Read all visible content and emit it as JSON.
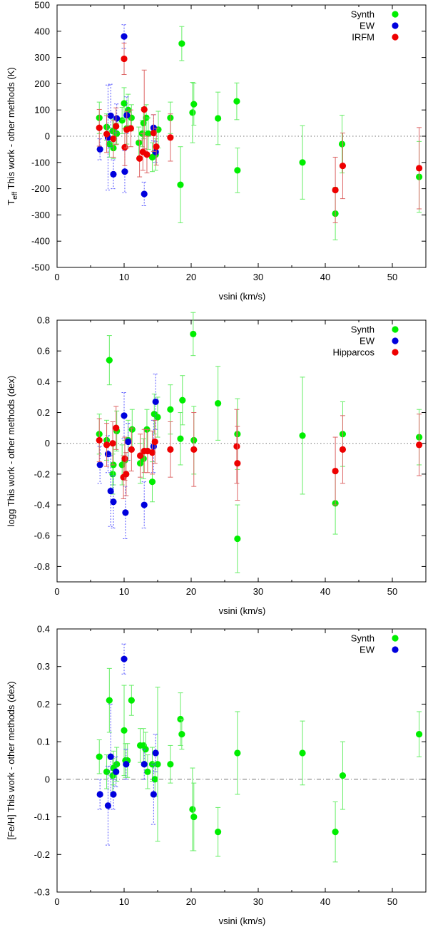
{
  "chart_data": [
    {
      "type": "scatter",
      "xlabel": "vsini (km/s)",
      "ylabel": "T_eff This work - other methods (K)",
      "ylabel_parts": {
        "pre": "T",
        "sub": "eff",
        "post": " This work - other methods (K)"
      },
      "xlim": [
        0,
        55
      ],
      "ylim": [
        -500,
        500
      ],
      "xticks": [
        0,
        10,
        20,
        30,
        40,
        50
      ],
      "yticks": [
        -500,
        -400,
        -300,
        -200,
        -100,
        0,
        100,
        200,
        300,
        400,
        500
      ],
      "zero_line": "dotted",
      "legend_position": "top-right",
      "series": [
        {
          "name": "Synth",
          "color": "#00ee00",
          "err_color": "#66ee66",
          "points": [
            [
              6.3,
              70,
              60
            ],
            [
              7.4,
              35,
              50
            ],
            [
              7.8,
              -30,
              50
            ],
            [
              8.3,
              20,
              45
            ],
            [
              8.4,
              -45,
              40
            ],
            [
              8.9,
              10,
              40
            ],
            [
              9.7,
              60,
              50
            ],
            [
              10.0,
              125,
              60
            ],
            [
              10.4,
              30,
              60
            ],
            [
              10.6,
              100,
              60
            ],
            [
              11.1,
              70,
              50
            ],
            [
              12.2,
              -25,
              60
            ],
            [
              12.7,
              10,
              50
            ],
            [
              12.9,
              50,
              60
            ],
            [
              13.3,
              70,
              50
            ],
            [
              13.6,
              10,
              60
            ],
            [
              14.2,
              -80,
              55
            ],
            [
              14.7,
              -70,
              60
            ],
            [
              15.1,
              25,
              70
            ],
            [
              16.9,
              70,
              60
            ],
            [
              18.4,
              -185,
              145
            ],
            [
              18.6,
              353,
              65
            ],
            [
              20.2,
              90,
              115
            ],
            [
              20.4,
              122,
              80
            ],
            [
              24.0,
              68,
              100
            ],
            [
              26.8,
              133,
              70
            ],
            [
              26.9,
              -130,
              85
            ],
            [
              36.6,
              -100,
              140
            ],
            [
              41.5,
              -295,
              100
            ],
            [
              42.5,
              -30,
              110
            ],
            [
              54.0,
              -155,
              135
            ]
          ]
        },
        {
          "name": "EW",
          "color": "#0000dd",
          "err_color": "#5555ff",
          "points": [
            [
              6.4,
              -50,
              40
            ],
            [
              7.6,
              -5,
              200
            ],
            [
              8.0,
              78,
              120
            ],
            [
              8.4,
              -145,
              55
            ],
            [
              8.9,
              68,
              55
            ],
            [
              10.0,
              380,
              45
            ],
            [
              10.1,
              -135,
              80
            ],
            [
              10.4,
              80,
              70
            ],
            [
              13.0,
              -220,
              45
            ],
            [
              14.4,
              32,
              50
            ],
            [
              14.7,
              -60,
              40
            ]
          ]
        },
        {
          "name": "IRFM",
          "color": "#ee0000",
          "err_color": "#dd6666",
          "points": [
            [
              6.3,
              32,
              70
            ],
            [
              7.4,
              8,
              70
            ],
            [
              8.4,
              -10,
              70
            ],
            [
              8.8,
              38,
              70
            ],
            [
              10.0,
              295,
              60
            ],
            [
              10.1,
              -42,
              70
            ],
            [
              10.4,
              25,
              70
            ],
            [
              11.0,
              30,
              70
            ],
            [
              12.3,
              -85,
              70
            ],
            [
              12.8,
              -60,
              70
            ],
            [
              13.0,
              102,
              150
            ],
            [
              13.4,
              -70,
              70
            ],
            [
              14.4,
              12,
              70
            ],
            [
              14.8,
              -40,
              70
            ],
            [
              16.9,
              -5,
              90
            ],
            [
              41.5,
              -205,
              125
            ],
            [
              42.6,
              -113,
              125
            ],
            [
              54.0,
              -122,
              155
            ]
          ]
        }
      ]
    },
    {
      "type": "scatter",
      "xlabel": "vsini (km/s)",
      "ylabel": "logg This work - other methods (dex)",
      "xlim": [
        0,
        55
      ],
      "ylim": [
        -0.9,
        0.8
      ],
      "xticks": [
        0,
        10,
        20,
        30,
        40,
        50
      ],
      "yticks": [
        -0.8,
        -0.6,
        -0.4,
        -0.2,
        0,
        0.2,
        0.4,
        0.6,
        0.8
      ],
      "ytick_labels": [
        "-0.8",
        "-0.6",
        "-0.4",
        "-0.2",
        "0",
        "0.2",
        "0.4",
        "0.6",
        "0.8"
      ],
      "zero_line": "dotted",
      "legend_position": "top-right",
      "series": [
        {
          "name": "Synth",
          "color": "#00ee00",
          "err_color": "#66ee66",
          "points": [
            [
              6.3,
              0.06,
              0.13
            ],
            [
              7.4,
              0.02,
              0.13
            ],
            [
              7.8,
              0.54,
              0.16
            ],
            [
              8.3,
              -0.2,
              0.13
            ],
            [
              8.4,
              -0.14,
              0.13
            ],
            [
              8.9,
              0.08,
              0.13
            ],
            [
              9.7,
              -0.14,
              0.13
            ],
            [
              10.1,
              -0.11,
              0.13
            ],
            [
              10.6,
              0.02,
              0.13
            ],
            [
              11.2,
              0.09,
              0.13
            ],
            [
              12.4,
              -0.13,
              0.13
            ],
            [
              12.9,
              -0.1,
              0.13
            ],
            [
              13.4,
              0.09,
              0.13
            ],
            [
              14.2,
              -0.25,
              0.13
            ],
            [
              14.5,
              0.19,
              0.13
            ],
            [
              15.0,
              0.17,
              0.13
            ],
            [
              16.9,
              0.22,
              0.16
            ],
            [
              18.4,
              0.03,
              0.17
            ],
            [
              18.7,
              0.28,
              0.16
            ],
            [
              20.3,
              0.71,
              0.14
            ],
            [
              20.4,
              0.02,
              0.22
            ],
            [
              24.0,
              0.26,
              0.24
            ],
            [
              26.9,
              0.06,
              0.23
            ],
            [
              26.9,
              -0.62,
              0.22
            ],
            [
              36.6,
              0.05,
              0.38
            ],
            [
              41.5,
              -0.39,
              0.2
            ],
            [
              42.6,
              0.06,
              0.21
            ],
            [
              54.0,
              0.04,
              0.18
            ]
          ]
        },
        {
          "name": "EW",
          "color": "#0000dd",
          "err_color": "#5555ff",
          "points": [
            [
              6.4,
              -0.14,
              0.12
            ],
            [
              7.6,
              -0.07,
              0.12
            ],
            [
              8.0,
              -0.31,
              0.23
            ],
            [
              8.4,
              -0.38,
              0.17
            ],
            [
              10.0,
              0.18,
              0.15
            ],
            [
              10.2,
              -0.45,
              0.17
            ],
            [
              10.6,
              0.01,
              0.12
            ],
            [
              13.0,
              -0.4,
              0.15
            ],
            [
              14.4,
              -0.02,
              0.17
            ],
            [
              14.7,
              0.27,
              0.18
            ]
          ]
        },
        {
          "name": "Hipparcos",
          "color": "#ee0000",
          "err_color": "#dd6666",
          "points": [
            [
              6.3,
              0.02,
              0.14
            ],
            [
              7.4,
              -0.01,
              0.14
            ],
            [
              8.3,
              0.0,
              0.14
            ],
            [
              8.8,
              0.1,
              0.14
            ],
            [
              9.9,
              -0.22,
              0.14
            ],
            [
              10.1,
              -0.1,
              0.14
            ],
            [
              10.3,
              -0.2,
              0.14
            ],
            [
              11.1,
              -0.04,
              0.14
            ],
            [
              12.4,
              -0.08,
              0.14
            ],
            [
              13.0,
              -0.05,
              0.14
            ],
            [
              13.5,
              -0.05,
              0.14
            ],
            [
              14.2,
              -0.06,
              0.14
            ],
            [
              14.6,
              0.01,
              0.14
            ],
            [
              16.9,
              -0.04,
              0.18
            ],
            [
              20.4,
              -0.04,
              0.24
            ],
            [
              26.8,
              -0.02,
              0.24
            ],
            [
              26.9,
              -0.13,
              0.24
            ],
            [
              41.5,
              -0.18,
              0.22
            ],
            [
              42.6,
              -0.04,
              0.22
            ],
            [
              54.0,
              -0.01,
              0.2
            ]
          ]
        }
      ]
    },
    {
      "type": "scatter",
      "xlabel": "vsini (km/s)",
      "ylabel": "[Fe/H] This work - other methods (dex)",
      "xlim": [
        0,
        55
      ],
      "ylim": [
        -0.3,
        0.4
      ],
      "xticks": [
        0,
        10,
        20,
        30,
        40,
        50
      ],
      "yticks": [
        -0.3,
        -0.2,
        -0.1,
        0,
        0.1,
        0.2,
        0.3,
        0.4
      ],
      "ytick_labels": [
        "-0.3",
        "-0.2",
        "-0.1",
        "0",
        "0.1",
        "0.2",
        "0.3",
        "0.4"
      ],
      "zero_line": "dash-dot",
      "legend_position": "top-right",
      "series": [
        {
          "name": "Synth",
          "color": "#00ee00",
          "err_color": "#66ee66",
          "points": [
            [
              6.3,
              0.06,
              0.045
            ],
            [
              7.4,
              0.02,
              0.045
            ],
            [
              7.8,
              0.21,
              0.085
            ],
            [
              8.3,
              0.01,
              0.045
            ],
            [
              8.4,
              0.03,
              0.045
            ],
            [
              8.9,
              0.04,
              0.045
            ],
            [
              10.0,
              0.13,
              0.12
            ],
            [
              10.2,
              0.05,
              0.045
            ],
            [
              10.5,
              0.05,
              0.045
            ],
            [
              11.1,
              0.21,
              0.04
            ],
            [
              12.4,
              0.09,
              0.045
            ],
            [
              12.9,
              0.09,
              0.045
            ],
            [
              13.2,
              0.08,
              0.045
            ],
            [
              13.5,
              0.02,
              0.045
            ],
            [
              14.2,
              0.04,
              0.045
            ],
            [
              14.6,
              0.0,
              0.045
            ],
            [
              15.0,
              0.04,
              0.205
            ],
            [
              16.9,
              0.04,
              0.05
            ],
            [
              18.4,
              0.16,
              0.07
            ],
            [
              18.6,
              0.12,
              0.04
            ],
            [
              20.2,
              -0.08,
              0.11
            ],
            [
              20.4,
              -0.1,
              0.09
            ],
            [
              24.0,
              -0.14,
              0.065
            ],
            [
              26.9,
              0.07,
              0.11
            ],
            [
              36.6,
              0.07,
              0.085
            ],
            [
              41.5,
              -0.14,
              0.08
            ],
            [
              42.6,
              0.01,
              0.09
            ],
            [
              54.0,
              0.12,
              0.06
            ]
          ]
        },
        {
          "name": "EW",
          "color": "#0000dd",
          "err_color": "#5555ff",
          "points": [
            [
              6.4,
              -0.04,
              0.04
            ],
            [
              7.6,
              -0.07,
              0.105
            ],
            [
              8.0,
              0.06,
              0.14
            ],
            [
              8.4,
              -0.04,
              0.04
            ],
            [
              8.8,
              0.02,
              0.04
            ],
            [
              10.0,
              0.32,
              0.04
            ],
            [
              10.3,
              0.04,
              0.04
            ],
            [
              13.0,
              0.04,
              0.04
            ],
            [
              14.4,
              -0.04,
              0.08
            ],
            [
              14.7,
              0.07,
              0.05
            ]
          ]
        }
      ]
    }
  ]
}
